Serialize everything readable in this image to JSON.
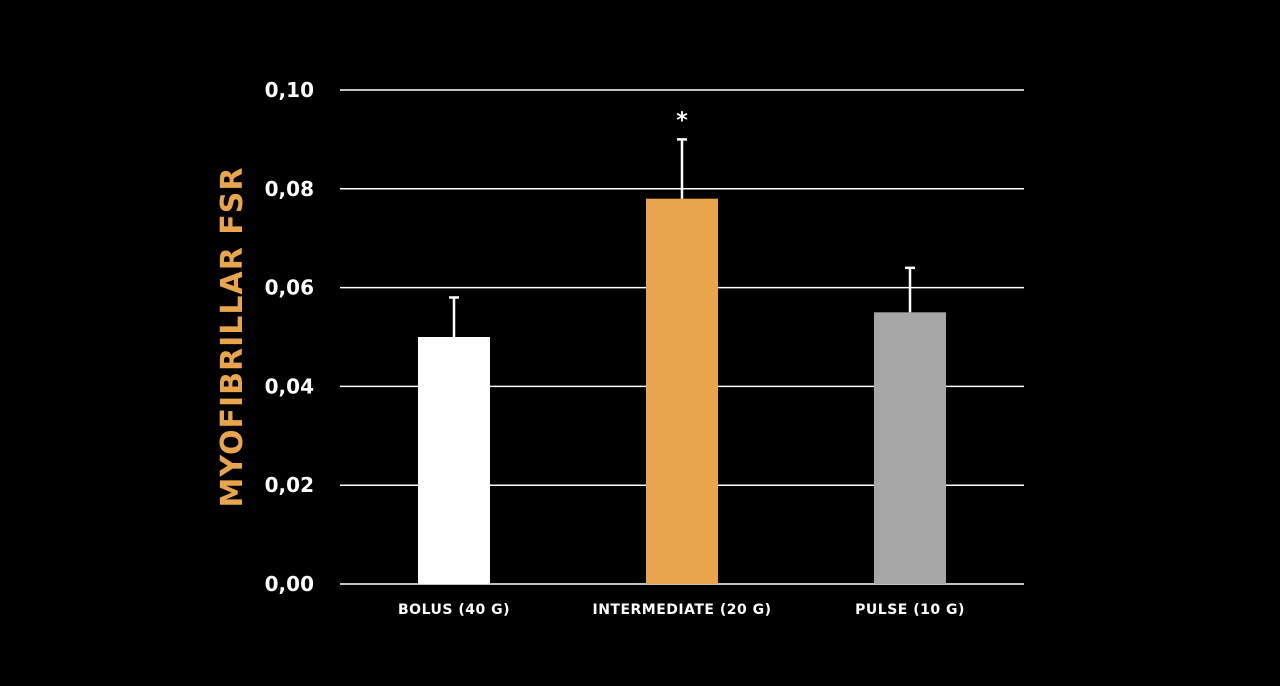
{
  "chart_data": {
    "type": "bar",
    "categories": [
      "BOLUS (40 G)",
      "INTERMEDIATE (20 G)",
      "PULSE (10 G)"
    ],
    "values": [
      0.05,
      0.078,
      0.055
    ],
    "error_upper": [
      0.058,
      0.09,
      0.064
    ],
    "bar_colors": [
      "#ffffff",
      "#e9a54c",
      "#a6a6a6"
    ],
    "annotations": [
      "",
      "*",
      ""
    ],
    "ylabel": "MYOFIBRILLAR FSR",
    "ylabel_color": "#e9a54c",
    "ylim": [
      0,
      0.1
    ],
    "yticks": [
      0.0,
      0.02,
      0.04,
      0.06,
      0.08,
      0.1
    ],
    "ytick_labels": [
      "0,00",
      "0,02",
      "0,04",
      "0,06",
      "0,08",
      "0,10"
    ],
    "grid": true,
    "grid_color": "#ffffff",
    "background": "#000000"
  }
}
